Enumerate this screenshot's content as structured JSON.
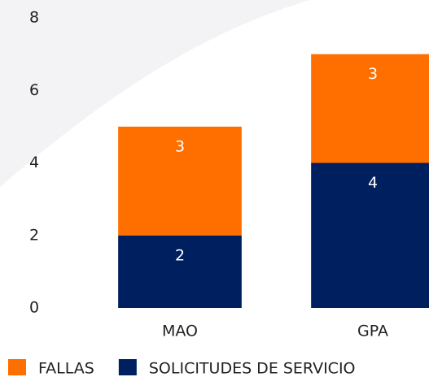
{
  "chart_data": {
    "type": "stacked_bar",
    "categories": [
      "MAO",
      "GPA"
    ],
    "series": [
      {
        "name": "SOLICITUDES DE SERVICIO",
        "color": "#001f5f",
        "values": [
          2,
          4
        ]
      },
      {
        "name": "FALLAS",
        "color": "#ff6f00",
        "values": [
          3,
          3
        ]
      }
    ],
    "ylim": [
      0,
      8
    ],
    "yticks": [
      0,
      2,
      4,
      6,
      8
    ],
    "grid": false,
    "legend": "bottom"
  }
}
